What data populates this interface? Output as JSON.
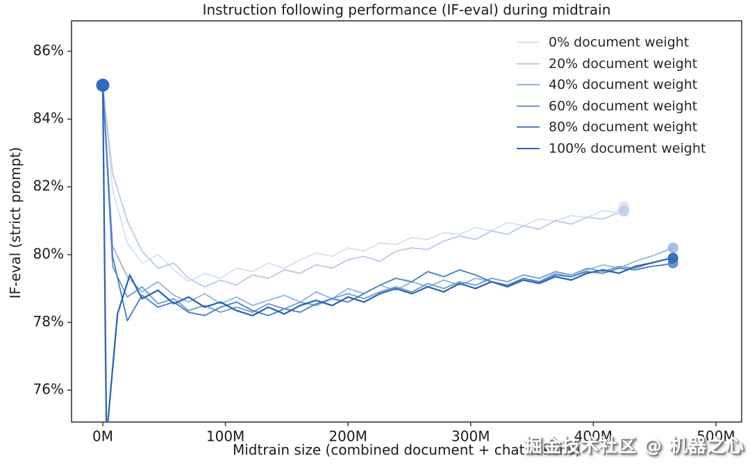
{
  "watermark": {
    "text": "掘金技术社区 @ 机器之心"
  },
  "chart_data": {
    "type": "line",
    "title": "Instruction following performance (IF-eval) during midtrain",
    "xlabel": "Midtrain size (combined document + chat tokens)",
    "ylabel": "IF-eval (strict prompt)",
    "x_unit": "millions of tokens",
    "xlim": [
      -25.5,
      521
    ],
    "ylim": [
      75.06,
      86.9
    ],
    "x_tick_values": [
      0,
      100,
      200,
      300,
      400,
      500
    ],
    "x_tick_labels": [
      "0M",
      "100M",
      "200M",
      "300M",
      "400M",
      "500M"
    ],
    "y_tick_values": [
      76,
      78,
      80,
      82,
      84,
      86
    ],
    "y_tick_labels": [
      "76%",
      "78%",
      "80%",
      "82%",
      "84%",
      "86%"
    ],
    "grid": false,
    "legend_position": "upper right",
    "frame_color": "#2a2a2a",
    "tick_text_color": "#1b1b1b",
    "start_marker": {
      "x": 0,
      "y": 85.0,
      "color": "#2f6cc2",
      "radius": 9.5
    },
    "series": [
      {
        "name": "0% document weight",
        "color": "#d6def0",
        "width": 1.8,
        "end_marker": {
          "x": 425,
          "y": 81.42
        },
        "x": [
          0,
          8,
          20,
          32,
          45,
          58,
          70,
          83,
          96,
          109,
          122,
          135,
          148,
          161,
          174,
          187,
          200,
          213,
          226,
          239,
          252,
          265,
          278,
          291,
          304,
          317,
          330,
          343,
          356,
          369,
          382,
          395,
          408,
          418,
          425
        ],
        "y": [
          85.0,
          81.9,
          80.35,
          79.75,
          80.0,
          79.55,
          79.2,
          79.45,
          79.3,
          79.6,
          79.5,
          79.75,
          79.6,
          79.85,
          80.05,
          79.95,
          80.2,
          80.1,
          80.35,
          80.3,
          80.5,
          80.45,
          80.65,
          80.6,
          80.8,
          80.7,
          80.95,
          80.85,
          81.05,
          81.0,
          81.15,
          81.1,
          81.3,
          81.25,
          81.42
        ]
      },
      {
        "name": "20% document weight",
        "color": "#b7c9e7",
        "width": 1.8,
        "end_marker": {
          "x": 425,
          "y": 81.28
        },
        "x": [
          0,
          8,
          20,
          32,
          45,
          58,
          70,
          83,
          96,
          109,
          122,
          135,
          148,
          161,
          174,
          187,
          200,
          213,
          226,
          239,
          252,
          265,
          278,
          291,
          304,
          317,
          330,
          343,
          356,
          369,
          382,
          395,
          408,
          418,
          425
        ],
        "y": [
          85.0,
          82.4,
          81.0,
          80.1,
          79.6,
          79.75,
          79.3,
          79.05,
          79.25,
          79.1,
          79.4,
          79.3,
          79.55,
          79.45,
          79.7,
          79.6,
          79.85,
          79.95,
          79.8,
          80.1,
          80.2,
          80.15,
          80.4,
          80.55,
          80.45,
          80.7,
          80.6,
          80.85,
          80.75,
          81.0,
          80.9,
          81.1,
          81.05,
          81.2,
          81.28
        ]
      },
      {
        "name": "40% document weight",
        "color": "#91b2de",
        "width": 1.8,
        "end_marker": {
          "x": 465,
          "y": 80.2
        },
        "x": [
          0,
          8,
          20,
          32,
          45,
          58,
          70,
          83,
          96,
          109,
          122,
          135,
          148,
          161,
          174,
          187,
          200,
          213,
          226,
          239,
          252,
          265,
          278,
          291,
          304,
          317,
          330,
          343,
          356,
          369,
          382,
          395,
          408,
          421,
          434,
          447,
          458,
          465
        ],
        "y": [
          85.0,
          80.25,
          79.35,
          78.9,
          79.2,
          78.8,
          78.6,
          78.85,
          78.55,
          78.75,
          78.5,
          78.65,
          78.8,
          78.6,
          78.9,
          78.7,
          79.0,
          78.85,
          79.1,
          78.95,
          79.2,
          79.05,
          79.25,
          79.1,
          79.3,
          79.2,
          79.05,
          79.3,
          79.2,
          79.45,
          79.35,
          79.55,
          79.7,
          79.6,
          79.8,
          79.95,
          80.1,
          80.2
        ]
      },
      {
        "name": "60% document weight",
        "color": "#6c98d1",
        "width": 1.8,
        "end_marker": {
          "x": 465,
          "y": 79.9
        },
        "x": [
          0,
          8,
          20,
          32,
          45,
          58,
          70,
          83,
          96,
          109,
          122,
          135,
          148,
          161,
          174,
          187,
          200,
          213,
          226,
          239,
          252,
          265,
          278,
          291,
          304,
          317,
          330,
          343,
          356,
          369,
          382,
          395,
          408,
          421,
          434,
          447,
          458,
          465
        ],
        "y": [
          85.0,
          79.65,
          78.75,
          79.05,
          78.55,
          78.7,
          78.35,
          78.5,
          78.3,
          78.45,
          78.3,
          78.55,
          78.4,
          78.6,
          78.5,
          78.7,
          78.85,
          78.7,
          78.9,
          79.05,
          78.9,
          79.15,
          79.0,
          79.2,
          79.1,
          79.3,
          79.2,
          79.4,
          79.3,
          79.5,
          79.4,
          79.6,
          79.5,
          79.65,
          79.6,
          79.75,
          79.85,
          79.9
        ]
      },
      {
        "name": "80% document weight",
        "color": "#4a80c4",
        "width": 1.9,
        "end_marker": {
          "x": 465,
          "y": 79.75
        },
        "x": [
          0,
          8,
          20,
          32,
          45,
          58,
          70,
          83,
          96,
          109,
          122,
          135,
          148,
          161,
          174,
          187,
          200,
          213,
          226,
          239,
          252,
          265,
          278,
          291,
          304,
          317,
          330,
          343,
          356,
          369,
          382,
          395,
          408,
          421,
          434,
          447,
          458,
          465
        ],
        "y": [
          85.0,
          79.95,
          78.05,
          78.8,
          78.45,
          78.6,
          78.3,
          78.2,
          78.45,
          78.6,
          78.35,
          78.2,
          78.4,
          78.3,
          78.55,
          78.7,
          78.6,
          78.85,
          79.1,
          79.3,
          79.2,
          79.5,
          79.35,
          79.55,
          79.4,
          79.2,
          79.1,
          79.3,
          79.2,
          79.4,
          79.35,
          79.5,
          79.45,
          79.6,
          79.55,
          79.65,
          79.7,
          79.75
        ]
      },
      {
        "name": "100% document weight",
        "color": "#2b65b4",
        "width": 2.3,
        "end_marker": {
          "x": 465,
          "y": 79.9
        },
        "x": [
          0,
          3,
          12,
          22,
          32,
          45,
          58,
          70,
          83,
          96,
          109,
          122,
          135,
          148,
          161,
          174,
          187,
          200,
          213,
          226,
          239,
          252,
          265,
          278,
          291,
          304,
          317,
          330,
          343,
          356,
          369,
          382,
          395,
          408,
          421,
          434,
          447,
          458,
          465
        ],
        "y": [
          85.0,
          74.6,
          78.25,
          79.4,
          78.7,
          78.95,
          78.55,
          78.75,
          78.45,
          78.6,
          78.35,
          78.2,
          78.45,
          78.25,
          78.5,
          78.65,
          78.5,
          78.75,
          78.6,
          78.85,
          79.0,
          78.85,
          79.05,
          78.9,
          79.15,
          79.0,
          79.2,
          79.05,
          79.25,
          79.15,
          79.35,
          79.25,
          79.45,
          79.55,
          79.45,
          79.65,
          79.75,
          79.85,
          79.9
        ]
      }
    ]
  }
}
